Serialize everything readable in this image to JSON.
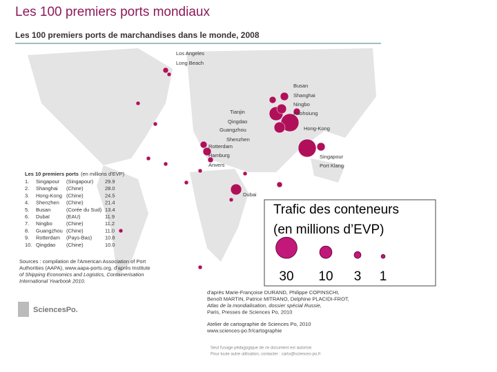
{
  "header": {
    "title": "Les 100 premiers ports mondiaux"
  },
  "map": {
    "title": "Les 100 premiers ports de marchandises dans le monde, 2008",
    "port_labels": [
      "Los Angeles",
      "Long Beach",
      "Busan",
      "Shanghai",
      "Ningbo",
      "Kaohsiung",
      "Tianjin",
      "Qingdao",
      "Guangzhou",
      "Shenzhen",
      "Hong-Kong",
      "Rotterdam",
      "Hamburg",
      "Anvers",
      "Singapour",
      "Port Klang",
      "Dubai"
    ]
  },
  "top10": {
    "title": "Les 10 premiers ports",
    "unit": "(en millions d'EVP)",
    "rows": [
      [
        "1.",
        "Singapour",
        "(Singapour)",
        "29.9"
      ],
      [
        "2.",
        "Shanghai",
        "(Chine)",
        "28.0"
      ],
      [
        "3.",
        "Hong-Kong",
        "(Chine)",
        "24.5"
      ],
      [
        "4.",
        "Shenzhen",
        "(Chine)",
        "21.4"
      ],
      [
        "5.",
        "Busan",
        "(Corée du Sud)",
        "13.4"
      ],
      [
        "6.",
        "Dubaï",
        "(EAU)",
        "11.9"
      ],
      [
        "7.",
        "Ningbo",
        "(Chine)",
        "11.2"
      ],
      [
        "8.",
        "Guangzhou",
        "(Chine)",
        "11.0"
      ],
      [
        "9.",
        "Rotterdam",
        "(Pays-Bas)",
        "10.8"
      ],
      [
        "10.",
        "Qingdao",
        "(Chine)",
        "10.0"
      ]
    ]
  },
  "sources": [
    "Sources : compilation de l'American Association of Port",
    "Authorities (AAPA), www.aapa-ports.org, d'après Institute",
    "of Shipping Economics and Logistics, Containerisation",
    "International Yearbook 2010."
  ],
  "legend": {
    "title": [
      "Trafic des conteneurs",
      "(en millions d’EVP)"
    ],
    "items": [
      30,
      10,
      3,
      1
    ]
  },
  "logo": "SciencesPo.",
  "credits": [
    "d'après Marie-Françoise DURAND, Philippe COPINSCHI,",
    "Benoît MARTIN, Patrice MITRANO, Delphine PLACIDI-FROT,",
    "Atlas de la mondialisation, dossier spécial Russie,",
    "Paris, Presses de Sciences Po, 2010",
    "Atelier de cartographie de Sciences Po, 2010",
    "www.sciences-po.fr/cartographie"
  ],
  "fine_print": [
    "Seul l'usage pédagogique de ce document est autorisé.",
    "Pour toute autre utilisation, contacter : carto@sciences-po.fr"
  ]
}
